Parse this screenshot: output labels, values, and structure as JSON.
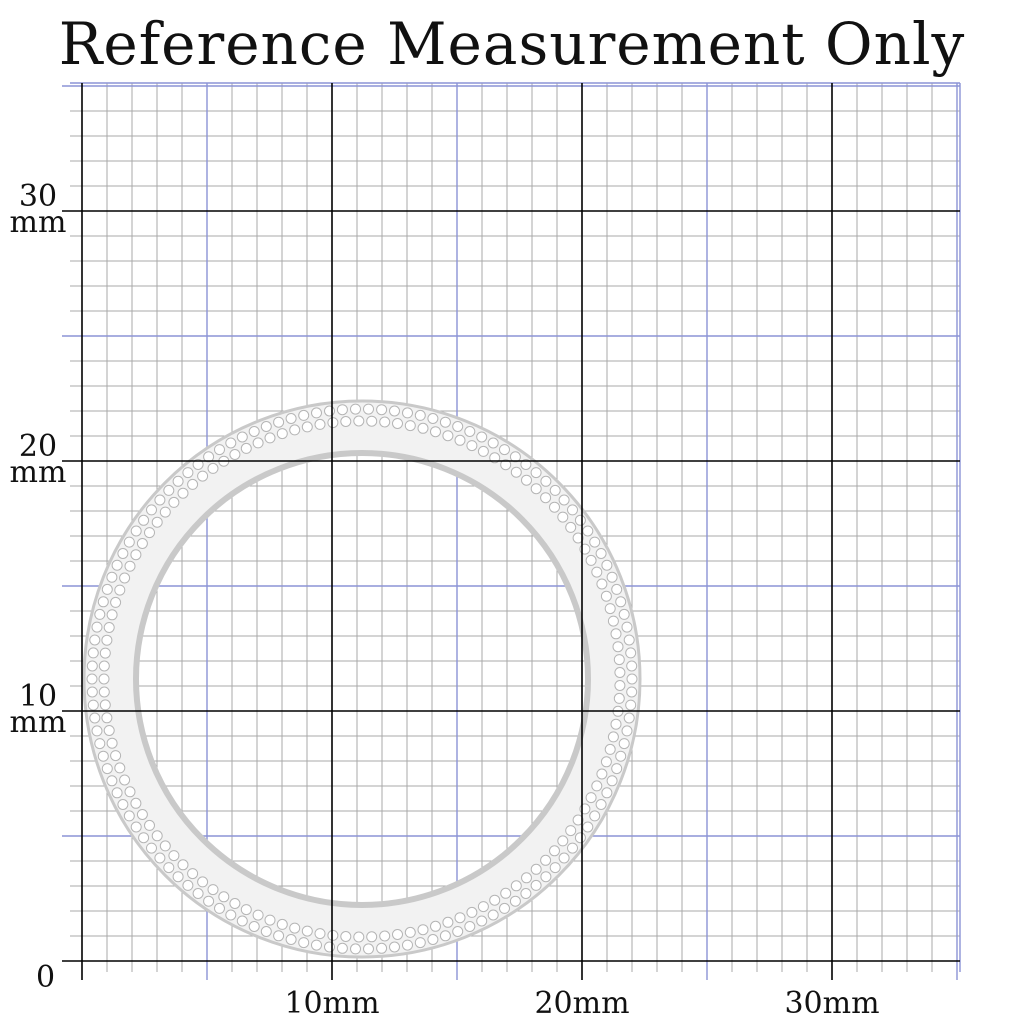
{
  "title": "Reference Measurement Only",
  "colors": {
    "minor_grid": "#a8a8a8",
    "half_grid": "#8c93d6",
    "major_grid": "#000000",
    "ring_metal": "#f2f2f2",
    "ring_shadow": "#c9c9c9"
  },
  "grid": {
    "unit": "mm",
    "x_range": [
      0,
      35
    ],
    "y_range": [
      0,
      35
    ],
    "minor_step_mm": 1,
    "half_step_mm": 5,
    "major_step_mm": 10
  },
  "y_axis": {
    "labels": [
      {
        "value": "30",
        "unit": "mm"
      },
      {
        "value": "20",
        "unit": "mm"
      },
      {
        "value": "10",
        "unit": "mm"
      }
    ]
  },
  "origin_label": "0",
  "x_axis": {
    "labels": [
      "10mm",
      "20mm",
      "30mm"
    ]
  },
  "product": {
    "icon": "eternity-ring-icon",
    "outer_diameter_mm": 22,
    "inner_diameter_mm": 18,
    "stone_rows": 2
  }
}
